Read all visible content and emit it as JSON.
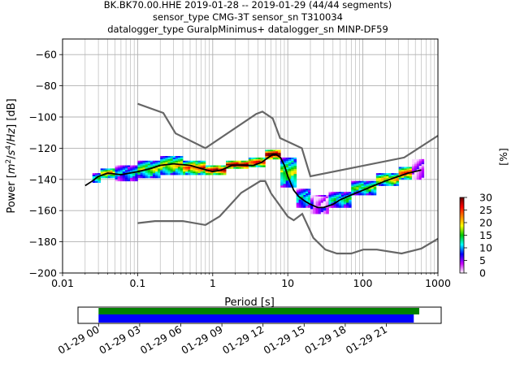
{
  "chart_data": {
    "type": "ppsd",
    "title_lines": [
      "BK.BK70.00.HHE   2019-01-28 -- 2019-01-29  (44/44 segments)",
      "sensor_type CMG-3T sensor_sn T310034",
      "datalogger_type GuralpMinimus+ datalogger_sn MINP-DF59"
    ],
    "xlabel": "Period [s]",
    "ylabel": "Power [m²/s⁴/Hz] [dB]",
    "ylabel_parts": {
      "pre": "Power [",
      "m": "m",
      "exp2": "2",
      "slash1": "/",
      "s": "s",
      "exp4": "4",
      "slash2": "/",
      "hz": "Hz",
      "post": "] [dB]"
    },
    "x_scale": "log",
    "xlim": [
      0.01,
      1000
    ],
    "ylim": [
      -200,
      -50
    ],
    "x_ticks": [
      {
        "value": 0.01,
        "label": "0.01"
      },
      {
        "value": 0.1,
        "label": "0.1"
      },
      {
        "value": 1,
        "label": "1"
      },
      {
        "value": 10,
        "label": "10"
      },
      {
        "value": 100,
        "label": "100"
      },
      {
        "value": 1000,
        "label": "1000"
      }
    ],
    "y_ticks": [
      {
        "value": -60,
        "label": "−60"
      },
      {
        "value": -80,
        "label": "−80"
      },
      {
        "value": -100,
        "label": "−100"
      },
      {
        "value": -120,
        "label": "−120"
      },
      {
        "value": -140,
        "label": "−140"
      },
      {
        "value": -160,
        "label": "−160"
      },
      {
        "value": -180,
        "label": "−180"
      },
      {
        "value": -200,
        "label": "−200"
      }
    ],
    "grid": true,
    "nhnm": {
      "x": [
        0.1,
        0.22,
        0.32,
        0.8,
        3.8,
        4.6,
        6.3,
        7.9,
        15.4,
        20,
        354.8,
        1000
      ],
      "y": [
        -91.5,
        -97.4,
        -110.5,
        -120,
        -98,
        -96.5,
        -101,
        -113.5,
        -120,
        -138,
        -126,
        -112
      ]
    },
    "nlnm": {
      "x": [
        0.1,
        0.17,
        0.4,
        0.8,
        1.24,
        2.4,
        4.3,
        5,
        6,
        10,
        12,
        15.6,
        21.9,
        31.6,
        45,
        70,
        101,
        154,
        328,
        600,
        1000
      ],
      "y": [
        -168,
        -166.7,
        -166.7,
        -169.2,
        -163.7,
        -148.6,
        -141.1,
        -141.1,
        -149,
        -163.8,
        -166.2,
        -162.1,
        -177.5,
        -185,
        -187.5,
        -187.5,
        -185,
        -185,
        -187.5,
        -184.4,
        -178
      ]
    },
    "mean_curve": {
      "x": [
        0.02,
        0.025,
        0.03,
        0.04,
        0.06,
        0.1,
        0.15,
        0.2,
        0.3,
        0.5,
        0.7,
        1,
        1.3,
        1.8,
        2.5,
        3.5,
        4.5,
        5.5,
        6.3,
        7,
        8,
        9,
        10,
        12,
        14,
        17,
        20,
        25,
        30,
        40,
        50,
        70,
        100,
        140,
        200,
        300,
        400,
        600
      ],
      "y": [
        -144,
        -141,
        -138,
        -136,
        -137,
        -135,
        -133,
        -131,
        -130,
        -131,
        -133,
        -135,
        -134,
        -131,
        -131,
        -131,
        -129,
        -126,
        -124,
        -124,
        -126,
        -131,
        -138,
        -147,
        -151,
        -154,
        -156,
        -158,
        -158,
        -156,
        -153,
        -150,
        -147,
        -144,
        -141,
        -138,
        -136,
        -134
      ]
    },
    "density_bands": [
      {
        "xmin": 0.025,
        "xmax": 0.032,
        "ymin": -142,
        "ymax": -136,
        "pct": 12
      },
      {
        "xmin": 0.032,
        "xmax": 0.05,
        "ymin": -139,
        "ymax": -133,
        "pct": 18
      },
      {
        "xmin": 0.05,
        "xmax": 0.1,
        "ymin": -141,
        "ymax": -131,
        "pct": 9
      },
      {
        "xmin": 0.1,
        "xmax": 0.2,
        "ymin": -139,
        "ymax": -128,
        "pct": 14
      },
      {
        "xmin": 0.2,
        "xmax": 0.4,
        "ymin": -137,
        "ymax": -125,
        "pct": 16
      },
      {
        "xmin": 0.4,
        "xmax": 0.8,
        "ymin": -137,
        "ymax": -128,
        "pct": 20
      },
      {
        "xmin": 0.8,
        "xmax": 1.5,
        "ymin": -137,
        "ymax": -131,
        "pct": 24
      },
      {
        "xmin": 1.5,
        "xmax": 3,
        "ymin": -133,
        "ymax": -128,
        "pct": 26
      },
      {
        "xmin": 3,
        "xmax": 5,
        "ymin": -132,
        "ymax": -126,
        "pct": 22
      },
      {
        "xmin": 5,
        "xmax": 8,
        "ymin": -127,
        "ymax": -121,
        "pct": 27
      },
      {
        "xmin": 8,
        "xmax": 13,
        "ymin": -145,
        "ymax": -126,
        "pct": 14
      },
      {
        "xmin": 13,
        "xmax": 20,
        "ymin": -158,
        "ymax": -146,
        "pct": 10
      },
      {
        "xmin": 20,
        "xmax": 35,
        "ymin": -162,
        "ymax": -150,
        "pct": 6
      },
      {
        "xmin": 22,
        "xmax": 40,
        "ymin": -158,
        "ymax": -151,
        "pct": 2
      },
      {
        "xmin": 35,
        "xmax": 70,
        "ymin": -158,
        "ymax": -148,
        "pct": 11
      },
      {
        "xmin": 70,
        "xmax": 150,
        "ymin": -150,
        "ymax": -141,
        "pct": 13
      },
      {
        "xmin": 150,
        "xmax": 300,
        "ymin": -144,
        "ymax": -136,
        "pct": 17
      },
      {
        "xmin": 300,
        "xmax": 450,
        "ymin": -140,
        "ymax": -132,
        "pct": 21
      },
      {
        "xmin": 450,
        "xmax": 650,
        "ymin": -140,
        "ymax": -127,
        "pct": 3
      }
    ],
    "colorbar": {
      "label": "[%]",
      "min": 0,
      "max": 30,
      "ticks": [
        {
          "value": 0,
          "label": "0"
        },
        {
          "value": 5,
          "label": "5"
        },
        {
          "value": 10,
          "label": "10"
        },
        {
          "value": 15,
          "label": "15"
        },
        {
          "value": 20,
          "label": "20"
        },
        {
          "value": 25,
          "label": "25"
        },
        {
          "value": 30,
          "label": "30"
        }
      ],
      "colors": [
        "#ffffff",
        "#c800ff",
        "#0000ff",
        "#00ffff",
        "#00c800",
        "#ffff00",
        "#ff8000",
        "#ff0000",
        "#640000"
      ]
    },
    "coverage": {
      "time_range_hours": [
        -1.5,
        25
      ],
      "ticks": [
        {
          "value": 0,
          "label": "01-29 00"
        },
        {
          "value": 3,
          "label": "01-29 03"
        },
        {
          "value": 6,
          "label": "01-29 06"
        },
        {
          "value": 9,
          "label": "01-29 09"
        },
        {
          "value": 12,
          "label": "01-29 12"
        },
        {
          "value": 15,
          "label": "01-29 15"
        },
        {
          "value": 18,
          "label": "01-29 18"
        },
        {
          "value": 21,
          "label": "01-29 21"
        }
      ],
      "segments_green": [
        [
          0,
          23.4
        ]
      ],
      "segments_blue": [
        [
          0,
          23.0
        ]
      ],
      "colors": {
        "green": "#008000",
        "blue": "#0000ff"
      }
    }
  }
}
